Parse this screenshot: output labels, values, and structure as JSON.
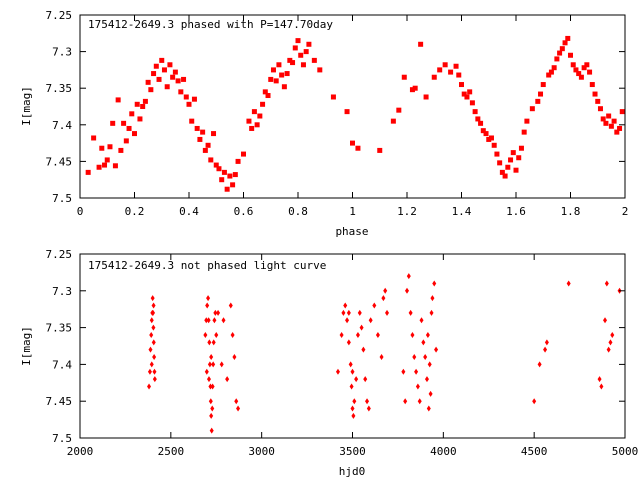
{
  "colors": {
    "marker": "#ff0000",
    "axis": "#000000",
    "background": "#ffffff"
  },
  "chart_data": [
    {
      "type": "scatter",
      "title": "175412-2649.3 phased with P=147.70day",
      "xlabel": "phase",
      "ylabel": "I[mag]",
      "xlim": [
        0,
        2
      ],
      "ylim": [
        7.25,
        7.5
      ],
      "y_inverted": true,
      "xticks": [
        "0",
        "0.2",
        "0.4",
        "0.6",
        "0.8",
        "1",
        "1.2",
        "1.4",
        "1.6",
        "1.8",
        "2"
      ],
      "yticks": [
        "7.25",
        "7.3",
        "7.35",
        "7.4",
        "7.45",
        "7.5"
      ],
      "grid": false,
      "marker": "filled-square",
      "points": [
        [
          0.03,
          7.465
        ],
        [
          0.05,
          7.418
        ],
        [
          0.07,
          7.458
        ],
        [
          0.08,
          7.432
        ],
        [
          0.09,
          7.455
        ],
        [
          0.1,
          7.448
        ],
        [
          0.11,
          7.43
        ],
        [
          0.12,
          7.398
        ],
        [
          0.13,
          7.456
        ],
        [
          0.14,
          7.366
        ],
        [
          0.15,
          7.435
        ],
        [
          0.16,
          7.398
        ],
        [
          0.17,
          7.422
        ],
        [
          0.18,
          7.405
        ],
        [
          0.19,
          7.385
        ],
        [
          0.2,
          7.412
        ],
        [
          0.21,
          7.372
        ],
        [
          0.22,
          7.392
        ],
        [
          0.23,
          7.375
        ],
        [
          0.24,
          7.368
        ],
        [
          0.25,
          7.342
        ],
        [
          0.26,
          7.352
        ],
        [
          0.27,
          7.33
        ],
        [
          0.28,
          7.32
        ],
        [
          0.29,
          7.338
        ],
        [
          0.3,
          7.312
        ],
        [
          0.31,
          7.325
        ],
        [
          0.32,
          7.348
        ],
        [
          0.33,
          7.318
        ],
        [
          0.34,
          7.335
        ],
        [
          0.35,
          7.328
        ],
        [
          0.36,
          7.34
        ],
        [
          0.37,
          7.355
        ],
        [
          0.38,
          7.338
        ],
        [
          0.39,
          7.362
        ],
        [
          0.4,
          7.372
        ],
        [
          0.41,
          7.395
        ],
        [
          0.42,
          7.365
        ],
        [
          0.43,
          7.405
        ],
        [
          0.44,
          7.42
        ],
        [
          0.45,
          7.41
        ],
        [
          0.46,
          7.435
        ],
        [
          0.47,
          7.428
        ],
        [
          0.48,
          7.448
        ],
        [
          0.49,
          7.412
        ],
        [
          0.5,
          7.455
        ],
        [
          0.51,
          7.46
        ],
        [
          0.52,
          7.475
        ],
        [
          0.53,
          7.465
        ],
        [
          0.54,
          7.488
        ],
        [
          0.55,
          7.47
        ],
        [
          0.56,
          7.482
        ],
        [
          0.57,
          7.468
        ],
        [
          0.58,
          7.45
        ],
        [
          0.6,
          7.44
        ],
        [
          0.62,
          7.395
        ],
        [
          0.63,
          7.405
        ],
        [
          0.64,
          7.382
        ],
        [
          0.65,
          7.4
        ],
        [
          0.66,
          7.388
        ],
        [
          0.67,
          7.372
        ],
        [
          0.68,
          7.355
        ],
        [
          0.69,
          7.36
        ],
        [
          0.7,
          7.338
        ],
        [
          0.71,
          7.325
        ],
        [
          0.72,
          7.34
        ],
        [
          0.73,
          7.318
        ],
        [
          0.74,
          7.332
        ],
        [
          0.75,
          7.348
        ],
        [
          0.76,
          7.33
        ],
        [
          0.77,
          7.312
        ],
        [
          0.78,
          7.315
        ],
        [
          0.79,
          7.295
        ],
        [
          0.8,
          7.285
        ],
        [
          0.81,
          7.305
        ],
        [
          0.82,
          7.318
        ],
        [
          0.83,
          7.3
        ],
        [
          0.84,
          7.29
        ],
        [
          0.86,
          7.312
        ],
        [
          0.88,
          7.325
        ],
        [
          0.93,
          7.362
        ],
        [
          0.98,
          7.382
        ],
        [
          1.0,
          7.425
        ],
        [
          1.02,
          7.432
        ],
        [
          1.1,
          7.435
        ],
        [
          1.15,
          7.395
        ],
        [
          1.17,
          7.38
        ],
        [
          1.19,
          7.335
        ],
        [
          1.22,
          7.352
        ],
        [
          1.23,
          7.35
        ],
        [
          1.25,
          7.29
        ],
        [
          1.27,
          7.362
        ],
        [
          1.3,
          7.335
        ],
        [
          1.32,
          7.325
        ],
        [
          1.34,
          7.318
        ],
        [
          1.36,
          7.328
        ],
        [
          1.38,
          7.32
        ],
        [
          1.39,
          7.332
        ],
        [
          1.4,
          7.345
        ],
        [
          1.41,
          7.358
        ],
        [
          1.42,
          7.362
        ],
        [
          1.43,
          7.355
        ],
        [
          1.44,
          7.37
        ],
        [
          1.45,
          7.382
        ],
        [
          1.46,
          7.392
        ],
        [
          1.47,
          7.398
        ],
        [
          1.48,
          7.408
        ],
        [
          1.49,
          7.412
        ],
        [
          1.5,
          7.42
        ],
        [
          1.51,
          7.418
        ],
        [
          1.52,
          7.428
        ],
        [
          1.53,
          7.44
        ],
        [
          1.54,
          7.452
        ],
        [
          1.55,
          7.465
        ],
        [
          1.56,
          7.47
        ],
        [
          1.57,
          7.458
        ],
        [
          1.58,
          7.448
        ],
        [
          1.59,
          7.438
        ],
        [
          1.6,
          7.462
        ],
        [
          1.61,
          7.445
        ],
        [
          1.62,
          7.432
        ],
        [
          1.63,
          7.41
        ],
        [
          1.64,
          7.395
        ],
        [
          1.66,
          7.378
        ],
        [
          1.68,
          7.368
        ],
        [
          1.69,
          7.358
        ],
        [
          1.7,
          7.345
        ],
        [
          1.72,
          7.332
        ],
        [
          1.73,
          7.328
        ],
        [
          1.74,
          7.322
        ],
        [
          1.75,
          7.31
        ],
        [
          1.76,
          7.302
        ],
        [
          1.77,
          7.296
        ],
        [
          1.78,
          7.288
        ],
        [
          1.79,
          7.282
        ],
        [
          1.8,
          7.305
        ],
        [
          1.81,
          7.318
        ],
        [
          1.82,
          7.325
        ],
        [
          1.83,
          7.33
        ],
        [
          1.84,
          7.335
        ],
        [
          1.85,
          7.322
        ],
        [
          1.86,
          7.318
        ],
        [
          1.87,
          7.328
        ],
        [
          1.88,
          7.345
        ],
        [
          1.89,
          7.358
        ],
        [
          1.9,
          7.368
        ],
        [
          1.91,
          7.378
        ],
        [
          1.92,
          7.392
        ],
        [
          1.93,
          7.398
        ],
        [
          1.94,
          7.388
        ],
        [
          1.95,
          7.402
        ],
        [
          1.96,
          7.395
        ],
        [
          1.97,
          7.41
        ],
        [
          1.98,
          7.405
        ],
        [
          1.99,
          7.382
        ]
      ]
    },
    {
      "type": "scatter",
      "title": "175412-2649.3 not phased light curve",
      "xlabel": "hjd0",
      "ylabel": "I[mag]",
      "xlim": [
        2000,
        5000
      ],
      "ylim": [
        7.25,
        7.5
      ],
      "y_inverted": true,
      "xticks": [
        "2000",
        "2500",
        "3000",
        "3500",
        "4000",
        "4500",
        "5000"
      ],
      "yticks": [
        "7.25",
        "7.3",
        "7.35",
        "7.4",
        "7.45",
        "7.5"
      ],
      "grid": false,
      "marker": "small-diamond",
      "points": [
        [
          2380,
          7.43
        ],
        [
          2385,
          7.41
        ],
        [
          2388,
          7.38
        ],
        [
          2392,
          7.36
        ],
        [
          2395,
          7.34
        ],
        [
          2398,
          7.33
        ],
        [
          2400,
          7.31
        ],
        [
          2402,
          7.33
        ],
        [
          2404,
          7.35
        ],
        [
          2406,
          7.37
        ],
        [
          2408,
          7.39
        ],
        [
          2410,
          7.41
        ],
        [
          2412,
          7.42
        ],
        [
          2405,
          7.32
        ],
        [
          2395,
          7.4
        ],
        [
          2690,
          7.36
        ],
        [
          2695,
          7.34
        ],
        [
          2700,
          7.32
        ],
        [
          2705,
          7.31
        ],
        [
          2708,
          7.34
        ],
        [
          2712,
          7.37
        ],
        [
          2715,
          7.4
        ],
        [
          2718,
          7.43
        ],
        [
          2720,
          7.45
        ],
        [
          2722,
          7.47
        ],
        [
          2725,
          7.49
        ],
        [
          2728,
          7.46
        ],
        [
          2730,
          7.43
        ],
        [
          2733,
          7.4
        ],
        [
          2736,
          7.37
        ],
        [
          2740,
          7.34
        ],
        [
          2745,
          7.33
        ],
        [
          2750,
          7.36
        ],
        [
          2760,
          7.33
        ],
        [
          2780,
          7.4
        ],
        [
          2790,
          7.34
        ],
        [
          2810,
          7.42
        ],
        [
          2830,
          7.32
        ],
        [
          2840,
          7.36
        ],
        [
          2850,
          7.39
        ],
        [
          2860,
          7.45
        ],
        [
          2870,
          7.46
        ],
        [
          2710,
          7.42
        ],
        [
          2722,
          7.39
        ],
        [
          2698,
          7.41
        ],
        [
          3420,
          7.41
        ],
        [
          3440,
          7.36
        ],
        [
          3450,
          7.33
        ],
        [
          3460,
          7.32
        ],
        [
          3470,
          7.34
        ],
        [
          3480,
          7.37
        ],
        [
          3490,
          7.4
        ],
        [
          3495,
          7.43
        ],
        [
          3500,
          7.46
        ],
        [
          3505,
          7.47
        ],
        [
          3510,
          7.45
        ],
        [
          3520,
          7.42
        ],
        [
          3530,
          7.36
        ],
        [
          3540,
          7.33
        ],
        [
          3550,
          7.35
        ],
        [
          3560,
          7.38
        ],
        [
          3570,
          7.42
        ],
        [
          3580,
          7.45
        ],
        [
          3590,
          7.46
        ],
        [
          3600,
          7.34
        ],
        [
          3620,
          7.32
        ],
        [
          3640,
          7.36
        ],
        [
          3660,
          7.39
        ],
        [
          3670,
          7.31
        ],
        [
          3680,
          7.3
        ],
        [
          3690,
          7.33
        ],
        [
          3480,
          7.33
        ],
        [
          3500,
          7.41
        ],
        [
          3780,
          7.41
        ],
        [
          3790,
          7.45
        ],
        [
          3800,
          7.3
        ],
        [
          3810,
          7.28
        ],
        [
          3820,
          7.33
        ],
        [
          3830,
          7.36
        ],
        [
          3840,
          7.39
        ],
        [
          3850,
          7.41
        ],
        [
          3860,
          7.43
        ],
        [
          3870,
          7.45
        ],
        [
          3880,
          7.34
        ],
        [
          3890,
          7.37
        ],
        [
          3900,
          7.39
        ],
        [
          3910,
          7.42
        ],
        [
          3920,
          7.46
        ],
        [
          3930,
          7.44
        ],
        [
          3935,
          7.33
        ],
        [
          3940,
          7.31
        ],
        [
          3950,
          7.29
        ],
        [
          3960,
          7.38
        ],
        [
          3925,
          7.4
        ],
        [
          3915,
          7.36
        ],
        [
          4500,
          7.45
        ],
        [
          4530,
          7.4
        ],
        [
          4560,
          7.38
        ],
        [
          4570,
          7.37
        ],
        [
          4690,
          7.29
        ],
        [
          4860,
          7.42
        ],
        [
          4870,
          7.43
        ],
        [
          4890,
          7.34
        ],
        [
          4900,
          7.29
        ],
        [
          4910,
          7.38
        ],
        [
          4920,
          7.37
        ],
        [
          4930,
          7.36
        ],
        [
          4970,
          7.3
        ]
      ]
    }
  ]
}
